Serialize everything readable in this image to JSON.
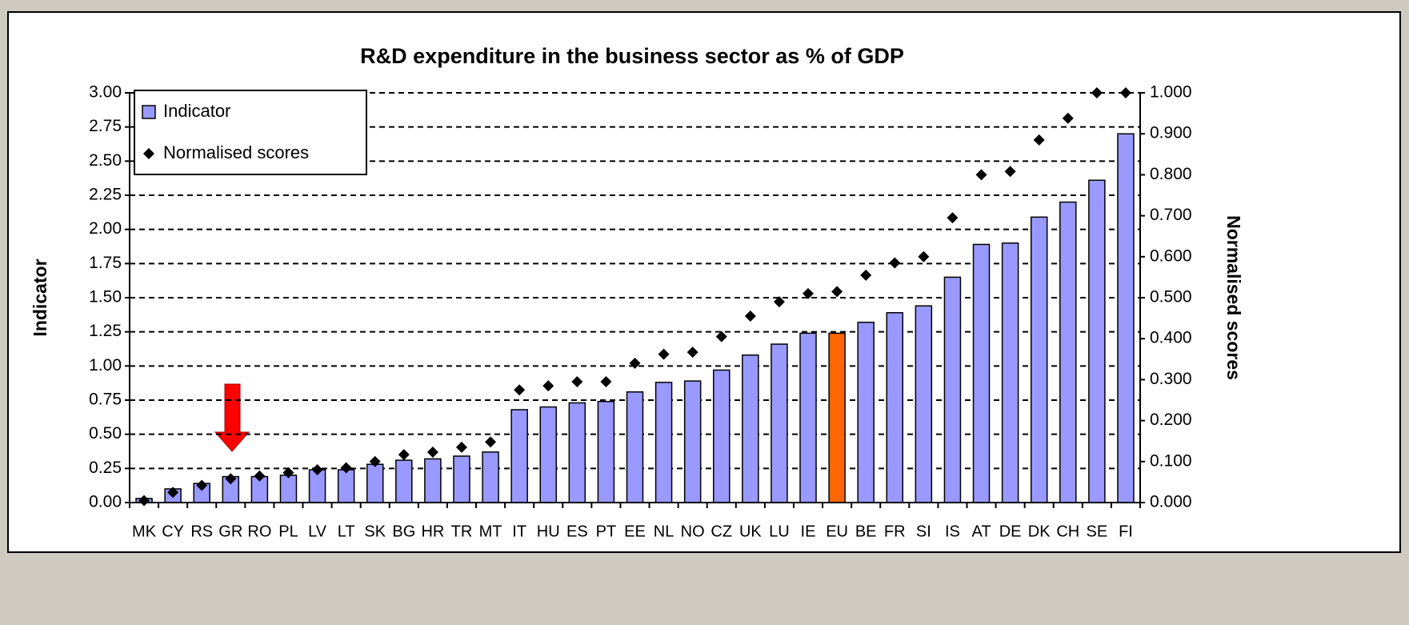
{
  "chart_data": {
    "type": "bar",
    "title": "R&D expenditure in the business sector as % of GDP",
    "y_label": "Indicator",
    "y2_label": "Normalised scores",
    "categories": [
      "MK",
      "CY",
      "RS",
      "GR",
      "RO",
      "PL",
      "LV",
      "LT",
      "SK",
      "BG",
      "HR",
      "TR",
      "MT",
      "IT",
      "HU",
      "ES",
      "PT",
      "EE",
      "NL",
      "NO",
      "CZ",
      "UK",
      "LU",
      "IE",
      "EU",
      "BE",
      "FR",
      "SI",
      "IS",
      "AT",
      "DE",
      "DK",
      "CH",
      "SE",
      "FI"
    ],
    "series": [
      {
        "name": "Indicator",
        "type": "bar",
        "axis": "y",
        "color": "#9999ff",
        "colors": [
          "#9999ff",
          "#9999ff",
          "#9999ff",
          "#9999ff",
          "#9999ff",
          "#9999ff",
          "#9999ff",
          "#9999ff",
          "#9999ff",
          "#9999ff",
          "#9999ff",
          "#9999ff",
          "#9999ff",
          "#9999ff",
          "#9999ff",
          "#9999ff",
          "#9999ff",
          "#9999ff",
          "#9999ff",
          "#9999ff",
          "#9999ff",
          "#9999ff",
          "#9999ff",
          "#9999ff",
          "#ff6600",
          "#9999ff",
          "#9999ff",
          "#9999ff",
          "#9999ff",
          "#9999ff",
          "#9999ff",
          "#9999ff",
          "#9999ff",
          "#9999ff",
          "#9999ff"
        ],
        "values": [
          0.03,
          0.1,
          0.14,
          0.19,
          0.19,
          0.2,
          0.24,
          0.24,
          0.28,
          0.31,
          0.32,
          0.34,
          0.37,
          0.68,
          0.7,
          0.73,
          0.74,
          0.81,
          0.88,
          0.89,
          0.97,
          1.08,
          1.16,
          1.24,
          1.24,
          1.32,
          1.39,
          1.44,
          1.65,
          1.89,
          1.9,
          2.09,
          2.2,
          2.36,
          2.7
        ]
      },
      {
        "name": "Normalised scores",
        "type": "scatter",
        "axis": "y2",
        "color": "#000000",
        "values": [
          0.005,
          0.025,
          0.042,
          0.058,
          0.065,
          0.073,
          0.08,
          0.085,
          0.1,
          0.117,
          0.123,
          0.135,
          0.148,
          0.275,
          0.285,
          0.295,
          0.295,
          0.34,
          0.362,
          0.367,
          0.405,
          0.455,
          0.49,
          0.51,
          0.515,
          0.555,
          0.585,
          0.6,
          0.695,
          0.8,
          0.808,
          0.885,
          0.938,
          1.0,
          1.0
        ]
      }
    ],
    "ylim": [
      0,
      3
    ],
    "yticks": [
      {
        "value": 0,
        "label": "0.00"
      },
      {
        "value": 0.25,
        "label": "0.25"
      },
      {
        "value": 0.5,
        "label": "0.50"
      },
      {
        "value": 0.75,
        "label": "0.75"
      },
      {
        "value": 1,
        "label": "1.00"
      },
      {
        "value": 1.25,
        "label": "1.25"
      },
      {
        "value": 1.5,
        "label": "1.50"
      },
      {
        "value": 1.75,
        "label": "1.75"
      },
      {
        "value": 2,
        "label": "2.00"
      },
      {
        "value": 2.25,
        "label": "2.25"
      },
      {
        "value": 2.5,
        "label": "2.50"
      },
      {
        "value": 2.75,
        "label": "2.75"
      },
      {
        "value": 3,
        "label": "3.00"
      }
    ],
    "y2lim": [
      0,
      1
    ],
    "y2ticks": [
      {
        "value": 0,
        "label": "0.000"
      },
      {
        "value": 0.1,
        "label": "0.100"
      },
      {
        "value": 0.2,
        "label": "0.200"
      },
      {
        "value": 0.3,
        "label": "0.300"
      },
      {
        "value": 0.4,
        "label": "0.400"
      },
      {
        "value": 0.5,
        "label": "0.500"
      },
      {
        "value": 0.6,
        "label": "0.600"
      },
      {
        "value": 0.7,
        "label": "0.700"
      },
      {
        "value": 0.8,
        "label": "0.800"
      },
      {
        "value": 0.9,
        "label": "0.900"
      },
      {
        "value": 1,
        "label": "1.000"
      }
    ],
    "grid": true,
    "legend": "upper left"
  }
}
